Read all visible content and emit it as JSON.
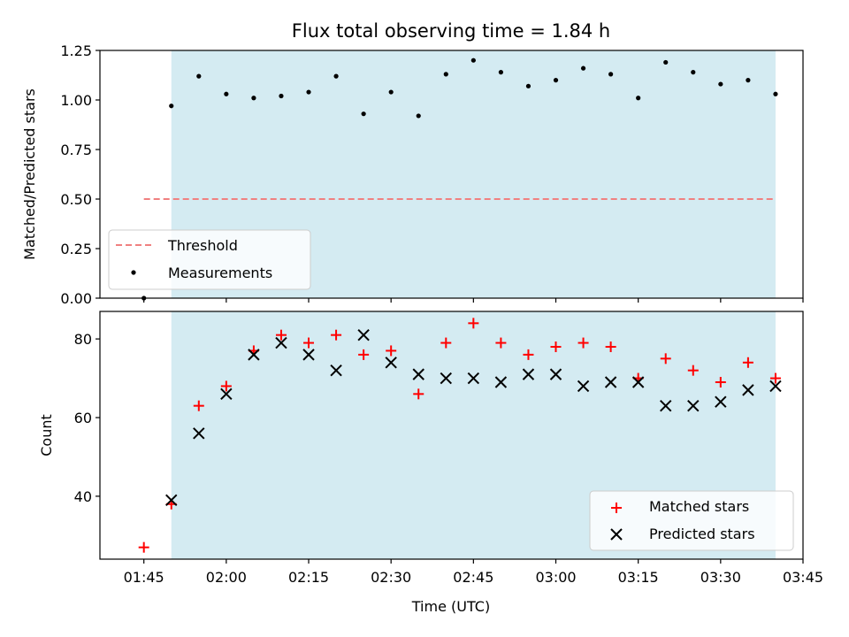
{
  "colors": {
    "observing_span": "#d4ebf2",
    "threshold": "#f08080",
    "measurement": "#000000",
    "matched": "#ff0000",
    "predicted": "#000000"
  },
  "chart_data": [
    {
      "type": "scatter",
      "title": "Flux total observing time = 1.84 h",
      "xlabel": "",
      "ylabel": "Matched/Predicted stars",
      "xlim_minutes_utc": [
        97,
        225
      ],
      "ylim": [
        0,
        1.25
      ],
      "yticks": [
        0,
        0.25,
        0.5,
        0.75,
        1.0,
        1.25
      ],
      "ytick_labels": [
        "0.00",
        "0.25",
        "0.50",
        "0.75",
        "1.00",
        "1.25"
      ],
      "observing_span_minutes_utc": [
        110,
        220
      ],
      "threshold": {
        "value": 0.5,
        "x_start_minutes_utc": 105,
        "x_end_minutes_utc": 220
      },
      "legend_position": "lower-left",
      "legend": [
        "Threshold",
        "Measurements"
      ],
      "series": [
        {
          "name": "Measurements",
          "x_minutes_utc": [
            105,
            110,
            115,
            120,
            125,
            130,
            135,
            140,
            145,
            150,
            155,
            160,
            165,
            170,
            175,
            180,
            185,
            190,
            195,
            200,
            205,
            210,
            215,
            220
          ],
          "y": [
            0.0,
            0.97,
            1.12,
            1.03,
            1.01,
            1.02,
            1.04,
            1.12,
            0.93,
            1.04,
            0.92,
            1.13,
            1.2,
            1.14,
            1.07,
            1.1,
            1.16,
            1.13,
            1.01,
            1.19,
            1.14,
            1.08,
            1.1,
            1.03
          ]
        }
      ]
    },
    {
      "type": "scatter",
      "title": "",
      "xlabel": "Time (UTC)",
      "ylabel": "Count",
      "xlim_minutes_utc": [
        97,
        225
      ],
      "ylim": [
        24,
        87
      ],
      "yticks": [
        40,
        60,
        80
      ],
      "ytick_labels": [
        "40",
        "60",
        "80"
      ],
      "xticks_minutes_utc": [
        105,
        120,
        135,
        150,
        165,
        180,
        195,
        210,
        225
      ],
      "xtick_labels": [
        "01:45",
        "02:00",
        "02:15",
        "02:30",
        "02:45",
        "03:00",
        "03:15",
        "03:30",
        "03:45"
      ],
      "observing_span_minutes_utc": [
        110,
        220
      ],
      "legend_position": "lower-right",
      "legend": [
        "Matched stars",
        "Predicted stars"
      ],
      "series": [
        {
          "name": "Matched stars",
          "marker": "plus",
          "x_minutes_utc": [
            105,
            110,
            115,
            120,
            125,
            130,
            135,
            140,
            145,
            150,
            155,
            160,
            165,
            170,
            175,
            180,
            185,
            190,
            195,
            200,
            205,
            210,
            215,
            220
          ],
          "y": [
            27,
            38,
            63,
            68,
            77,
            81,
            79,
            81,
            76,
            77,
            66,
            79,
            84,
            79,
            76,
            78,
            79,
            78,
            70,
            75,
            72,
            69,
            74,
            70
          ]
        },
        {
          "name": "Predicted stars",
          "marker": "x",
          "x_minutes_utc": [
            110,
            115,
            120,
            125,
            130,
            135,
            140,
            145,
            150,
            155,
            160,
            165,
            170,
            175,
            180,
            185,
            190,
            195,
            200,
            205,
            210,
            215,
            220
          ],
          "y": [
            39,
            56,
            66,
            76,
            79,
            76,
            72,
            81,
            74,
            71,
            70,
            70,
            69,
            71,
            71,
            68,
            69,
            69,
            63,
            63,
            64,
            67,
            68
          ]
        }
      ]
    }
  ]
}
